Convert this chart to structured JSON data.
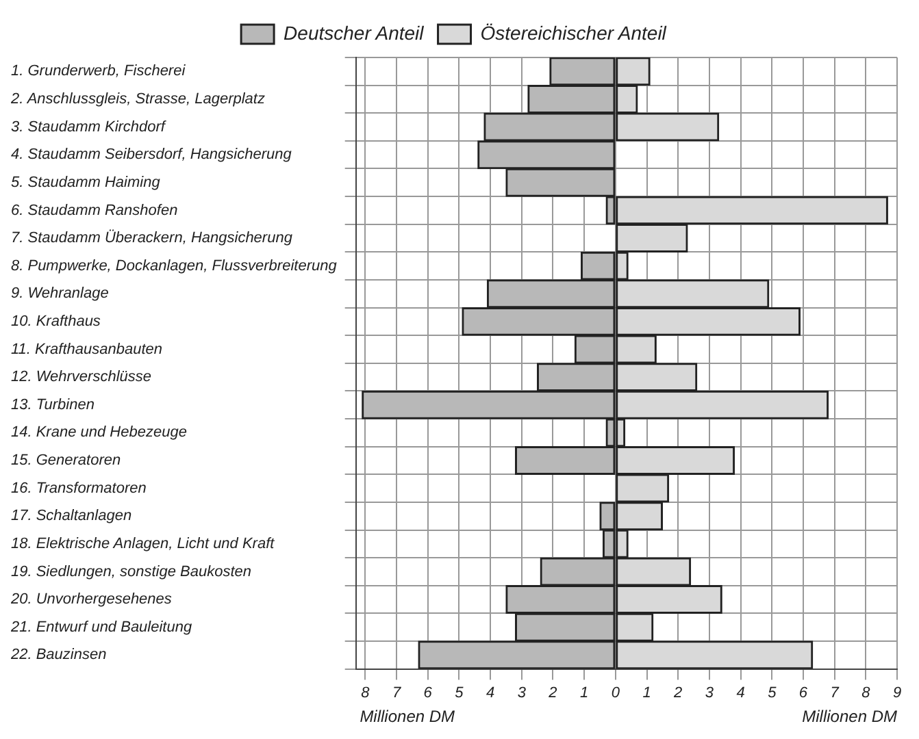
{
  "chart_data": {
    "type": "bar",
    "orientation": "horizontal",
    "stacked": true,
    "xlabel": "Millionen DM",
    "categories": [
      "1. Grunderwerb, Fischerei",
      "2. Anschlussgleis, Strasse, Lagerplatz",
      "3. Staudamm Kirchdorf",
      "4. Staudamm Seibersdorf, Hangsicherung",
      "5. Staudamm Haiming",
      "6. Staudamm Ranshofen",
      "7. Staudamm Überackern, Hangsicherung",
      "8. Pumpwerke, Dockanlagen, Flussverbreiterung",
      "9. Wehranlage",
      "10. Krafthaus",
      "11. Krafthausanbauten",
      "12. Wehrverschlüsse",
      "13. Turbinen",
      "14. Krane und Hebezeuge",
      "15. Generatoren",
      "16. Transformatoren",
      "17. Schaltanlagen",
      "18. Elektrische Anlagen, Licht und Kraft",
      "19. Siedlungen, sonstige Baukosten",
      "20. Unvorhergesehenes",
      "21. Entwurf und Bauleitung",
      "22. Bauzinsen"
    ],
    "series": [
      {
        "name": "Deutscher Anteil",
        "color": "#b8b8b8",
        "values": [
          -2.1,
          -2.8,
          -4.2,
          -4.4,
          -3.5,
          -0.3,
          0,
          -1.1,
          -4.1,
          -4.9,
          -1.3,
          -2.5,
          -8.1,
          -0.3,
          -3.2,
          0,
          -0.5,
          -0.4,
          -2.4,
          -3.5,
          -3.2,
          -6.3
        ]
      },
      {
        "name": "Östereichischer Anteil",
        "color": "#d9d9d9",
        "values": [
          1.1,
          0.7,
          3.3,
          0,
          0,
          8.7,
          2.3,
          0.4,
          4.9,
          5.9,
          1.3,
          2.6,
          6.8,
          0.3,
          3.8,
          1.7,
          1.5,
          0.4,
          2.4,
          3.4,
          1.2,
          6.3
        ]
      }
    ],
    "xlim": [
      -8.3,
      9
    ],
    "xticks": [
      {
        "value": -8,
        "label": "8"
      },
      {
        "value": -7,
        "label": "7"
      },
      {
        "value": -6,
        "label": "6"
      },
      {
        "value": -5,
        "label": "5"
      },
      {
        "value": -4,
        "label": "4"
      },
      {
        "value": -3,
        "label": "3"
      },
      {
        "value": -2,
        "label": "2"
      },
      {
        "value": -1,
        "label": "1"
      },
      0,
      1,
      2,
      3,
      4,
      5,
      6,
      7,
      8,
      9
    ],
    "grid": true,
    "legend": "top"
  }
}
